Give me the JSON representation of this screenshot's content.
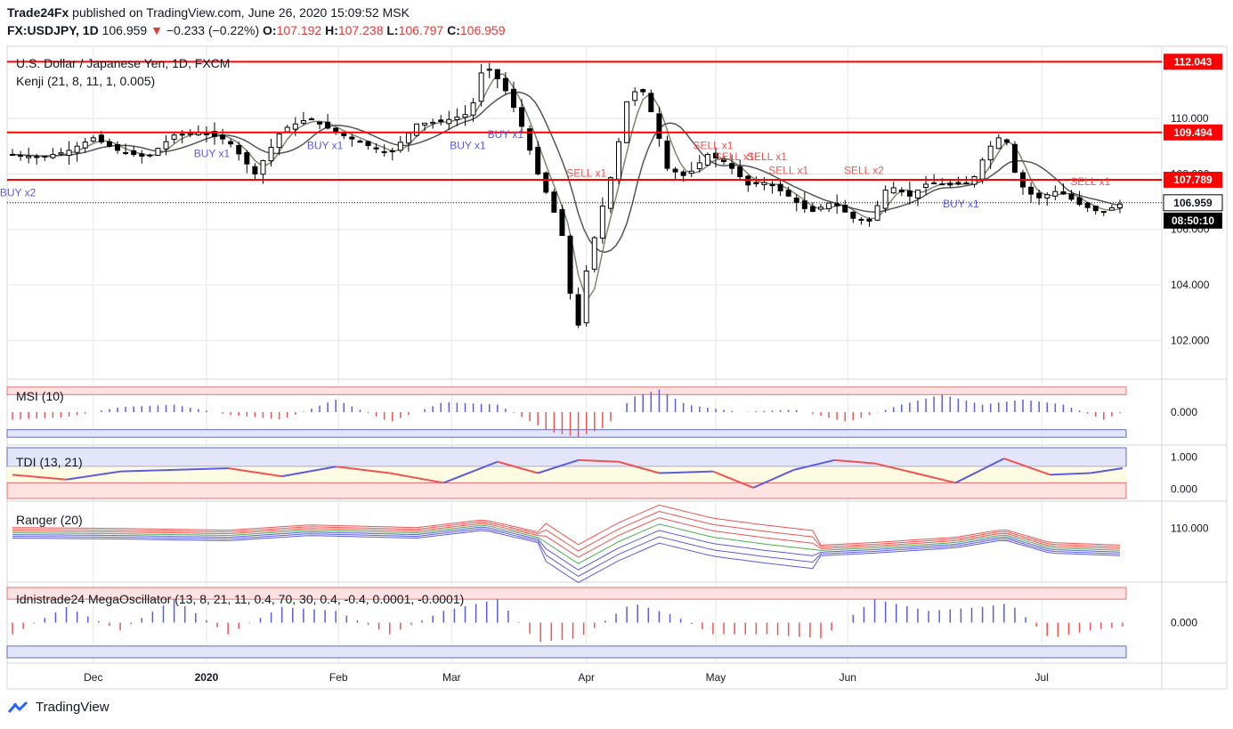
{
  "header": {
    "publisher": "Trade24Fx",
    "published_text": "published on TradingView.com, June 26, 2020 15:09:52 MSK",
    "symbol": "FX:USDJPY, 1D",
    "last": "106.959",
    "change_arrow": "▼",
    "change": "−0.233 (−0.22%)",
    "open_label": "O:",
    "open": "107.192",
    "high_label": "H:",
    "high": "107.238",
    "low_label": "L:",
    "low": "106.797",
    "close_label": "C:",
    "close": "106.959"
  },
  "footer": {
    "brand": "TradingView",
    "icon": "tradingview-logo-icon"
  },
  "colors": {
    "up": "#ffffff",
    "down": "#000000",
    "hline": "#ff0000",
    "sell": "#ef5350",
    "buy": "#5b5ce0",
    "grid": "#e6e6e6"
  },
  "chart_data": [
    {
      "type": "candlestick",
      "title": "U.S. Dollar / Japanese Yen, 1D, FXCM",
      "indicator": "Kenji (21, 8, 11, 1, 0.005)",
      "x_tick_labels": [
        "Dec",
        "2020",
        "Feb",
        "Mar",
        "Apr",
        "May",
        "Jun",
        "Jul"
      ],
      "y_tick_labels": [
        "102.000",
        "104.000",
        "106.000",
        "108.000",
        "110.000"
      ],
      "ylim": [
        100.6,
        112.6
      ],
      "horizontal_levels": [
        "112.043",
        "109.494",
        "107.789"
      ],
      "horizontal_level_values": [
        112.043,
        109.494,
        107.789
      ],
      "last_price_label": "106.959",
      "last_price": 106.959,
      "countdown_label": "08:50:10",
      "signals": [
        {
          "text": "BUY x2",
          "type": "buy",
          "day": 2,
          "price": 107.2
        },
        {
          "text": "BUY x1",
          "type": "buy",
          "day": 74,
          "price": 108.6
        },
        {
          "text": "BUY x1",
          "type": "buy",
          "day": 116,
          "price": 108.9
        },
        {
          "text": "BUY x1",
          "type": "buy",
          "day": 169,
          "price": 108.9
        },
        {
          "text": "BUY x1",
          "type": "buy",
          "day": 183,
          "price": 109.3
        },
        {
          "text": "SELL x1",
          "type": "sell",
          "day": 213,
          "price": 107.9
        },
        {
          "text": "SELL x1",
          "type": "sell",
          "day": 260,
          "price": 108.9
        },
        {
          "text": "SELL x1",
          "type": "sell",
          "day": 268,
          "price": 108.5
        },
        {
          "text": "SELL x1",
          "type": "sell",
          "day": 280,
          "price": 108.5
        },
        {
          "text": "SELL x1",
          "type": "sell",
          "day": 288,
          "price": 108.0
        },
        {
          "text": "SELL x2",
          "type": "sell",
          "day": 316,
          "price": 108.0
        },
        {
          "text": "BUY x1",
          "type": "buy",
          "day": 352,
          "price": 106.8
        },
        {
          "text": "SELL x1",
          "type": "sell",
          "day": 400,
          "price": 107.6
        }
      ],
      "series": [
        {
          "name": "USDJPY",
          "points": [
            {
              "day": 0,
              "close": 108.7
            },
            {
              "day": 10,
              "close": 108.6
            },
            {
              "day": 20,
              "close": 108.8
            },
            {
              "day": 30,
              "close": 109.3
            },
            {
              "day": 40,
              "close": 108.8
            },
            {
              "day": 50,
              "close": 108.6
            },
            {
              "day": 60,
              "close": 109.4
            },
            {
              "day": 70,
              "close": 109.5
            },
            {
              "day": 80,
              "close": 109.2
            },
            {
              "day": 90,
              "close": 108.0
            },
            {
              "day": 100,
              "close": 109.6
            },
            {
              "day": 110,
              "close": 110.0
            },
            {
              "day": 120,
              "close": 109.5
            },
            {
              "day": 130,
              "close": 109.1
            },
            {
              "day": 140,
              "close": 108.7
            },
            {
              "day": 150,
              "close": 109.8
            },
            {
              "day": 160,
              "close": 109.9
            },
            {
              "day": 170,
              "close": 110.2
            },
            {
              "day": 175,
              "close": 112.0
            },
            {
              "day": 182,
              "close": 111.2
            },
            {
              "day": 188,
              "close": 110.0
            },
            {
              "day": 195,
              "close": 108.0
            },
            {
              "day": 200,
              "close": 106.9
            },
            {
              "day": 205,
              "close": 105.5
            },
            {
              "day": 209,
              "close": 101.9
            },
            {
              "day": 213,
              "close": 104.5
            },
            {
              "day": 218,
              "close": 106.5
            },
            {
              "day": 223,
              "close": 108.2
            },
            {
              "day": 228,
              "close": 110.6
            },
            {
              "day": 233,
              "close": 111.2
            },
            {
              "day": 238,
              "close": 110.0
            },
            {
              "day": 243,
              "close": 108.2
            },
            {
              "day": 250,
              "close": 107.9
            },
            {
              "day": 258,
              "close": 108.7
            },
            {
              "day": 265,
              "close": 108.4
            },
            {
              "day": 273,
              "close": 107.6
            },
            {
              "day": 280,
              "close": 107.7
            },
            {
              "day": 288,
              "close": 107.2
            },
            {
              "day": 296,
              "close": 106.6
            },
            {
              "day": 304,
              "close": 107.0
            },
            {
              "day": 312,
              "close": 106.4
            },
            {
              "day": 318,
              "close": 106.3
            },
            {
              "day": 325,
              "close": 107.6
            },
            {
              "day": 333,
              "close": 107.2
            },
            {
              "day": 340,
              "close": 107.7
            },
            {
              "day": 348,
              "close": 107.6
            },
            {
              "day": 356,
              "close": 107.7
            },
            {
              "day": 362,
              "close": 108.9
            },
            {
              "day": 368,
              "close": 109.5
            },
            {
              "day": 373,
              "close": 107.7
            },
            {
              "day": 380,
              "close": 107.1
            },
            {
              "day": 388,
              "close": 107.4
            },
            {
              "day": 396,
              "close": 106.9
            },
            {
              "day": 404,
              "close": 106.6
            },
            {
              "day": 412,
              "close": 106.959
            }
          ]
        }
      ]
    },
    {
      "type": "histogram",
      "title": "MSI (10)",
      "y_tick_labels": [
        "0.000"
      ],
      "series": [
        {
          "name": "MSI",
          "points": [
            {
              "day": 0,
              "value": -0.3
            },
            {
              "day": 20,
              "value": -0.2
            },
            {
              "day": 40,
              "value": 0.2
            },
            {
              "day": 60,
              "value": 0.3
            },
            {
              "day": 80,
              "value": -0.1
            },
            {
              "day": 100,
              "value": -0.3
            },
            {
              "day": 120,
              "value": 0.5
            },
            {
              "day": 140,
              "value": -0.4
            },
            {
              "day": 160,
              "value": 0.4
            },
            {
              "day": 180,
              "value": 0.3
            },
            {
              "day": 200,
              "value": -0.8
            },
            {
              "day": 210,
              "value": -1.0
            },
            {
              "day": 220,
              "value": -0.6
            },
            {
              "day": 230,
              "value": 0.6
            },
            {
              "day": 240,
              "value": 0.9
            },
            {
              "day": 250,
              "value": 0.3
            },
            {
              "day": 270,
              "value": 0.0
            },
            {
              "day": 290,
              "value": 0.1
            },
            {
              "day": 310,
              "value": -0.4
            },
            {
              "day": 330,
              "value": 0.3
            },
            {
              "day": 345,
              "value": 0.7
            },
            {
              "day": 360,
              "value": 0.3
            },
            {
              "day": 375,
              "value": 0.5
            },
            {
              "day": 390,
              "value": 0.3
            },
            {
              "day": 405,
              "value": -0.3
            },
            {
              "day": 412,
              "value": 0.0
            }
          ]
        }
      ]
    },
    {
      "type": "line",
      "title": "TDI (13, 21)",
      "y_tick_labels": [
        "1.000",
        "0.000"
      ],
      "series": [
        {
          "name": "TDI",
          "points": [
            {
              "day": 0,
              "value": 0.45
            },
            {
              "day": 20,
              "value": 0.3
            },
            {
              "day": 40,
              "value": 0.55
            },
            {
              "day": 60,
              "value": 0.6
            },
            {
              "day": 80,
              "value": 0.65
            },
            {
              "day": 100,
              "value": 0.4
            },
            {
              "day": 120,
              "value": 0.7
            },
            {
              "day": 140,
              "value": 0.5
            },
            {
              "day": 160,
              "value": 0.2
            },
            {
              "day": 180,
              "value": 0.85
            },
            {
              "day": 195,
              "value": 0.5
            },
            {
              "day": 210,
              "value": 0.9
            },
            {
              "day": 225,
              "value": 0.85
            },
            {
              "day": 240,
              "value": 0.5
            },
            {
              "day": 260,
              "value": 0.55
            },
            {
              "day": 275,
              "value": 0.05
            },
            {
              "day": 290,
              "value": 0.6
            },
            {
              "day": 305,
              "value": 0.9
            },
            {
              "day": 320,
              "value": 0.8
            },
            {
              "day": 335,
              "value": 0.5
            },
            {
              "day": 350,
              "value": 0.2
            },
            {
              "day": 368,
              "value": 0.95
            },
            {
              "day": 385,
              "value": 0.45
            },
            {
              "day": 400,
              "value": 0.5
            },
            {
              "day": 412,
              "value": 0.65
            }
          ]
        }
      ]
    },
    {
      "type": "line",
      "title": "Ranger (20)",
      "y_tick_labels": [
        "110.000"
      ],
      "series": [
        {
          "name": "Ranger",
          "points": [
            {
              "day": 0,
              "value": 109.5
            },
            {
              "day": 40,
              "value": 109.4
            },
            {
              "day": 80,
              "value": 109.2
            },
            {
              "day": 110,
              "value": 109.8
            },
            {
              "day": 150,
              "value": 109.5
            },
            {
              "day": 175,
              "value": 110.4
            },
            {
              "day": 195,
              "value": 109.0
            },
            {
              "day": 210,
              "value": 106.0
            },
            {
              "day": 225,
              "value": 108.5
            },
            {
              "day": 240,
              "value": 110.5
            },
            {
              "day": 260,
              "value": 109.0
            },
            {
              "day": 280,
              "value": 108.2
            },
            {
              "day": 300,
              "value": 107.5
            },
            {
              "day": 320,
              "value": 107.8
            },
            {
              "day": 350,
              "value": 108.4
            },
            {
              "day": 368,
              "value": 109.3
            },
            {
              "day": 385,
              "value": 107.8
            },
            {
              "day": 412,
              "value": 107.5
            }
          ]
        }
      ]
    },
    {
      "type": "histogram",
      "title": "Idnistrade24 MegaOscillator (13, 8, 21, 11, 0.4, 70, 30, 0.4, -0.4, 0.0001, -0.0001)",
      "y_tick_labels": [
        "0.000"
      ],
      "series": [
        {
          "name": "MegaOscillator",
          "points": [
            {
              "day": 0,
              "value": -0.3
            },
            {
              "day": 20,
              "value": 0.4
            },
            {
              "day": 40,
              "value": -0.2
            },
            {
              "day": 60,
              "value": 0.6
            },
            {
              "day": 80,
              "value": -0.3
            },
            {
              "day": 100,
              "value": 0.4
            },
            {
              "day": 120,
              "value": 0.3
            },
            {
              "day": 140,
              "value": -0.3
            },
            {
              "day": 160,
              "value": 0.3
            },
            {
              "day": 180,
              "value": 0.6
            },
            {
              "day": 195,
              "value": -0.5
            },
            {
              "day": 210,
              "value": -0.4
            },
            {
              "day": 230,
              "value": 0.5
            },
            {
              "day": 245,
              "value": 0.2
            },
            {
              "day": 260,
              "value": -0.3
            },
            {
              "day": 280,
              "value": -0.3
            },
            {
              "day": 300,
              "value": -0.4
            },
            {
              "day": 320,
              "value": 0.6
            },
            {
              "day": 340,
              "value": 0.3
            },
            {
              "day": 360,
              "value": 0.4
            },
            {
              "day": 370,
              "value": 0.5
            },
            {
              "day": 385,
              "value": -0.4
            },
            {
              "day": 400,
              "value": -0.2
            },
            {
              "day": 412,
              "value": -0.1
            }
          ]
        }
      ]
    }
  ]
}
